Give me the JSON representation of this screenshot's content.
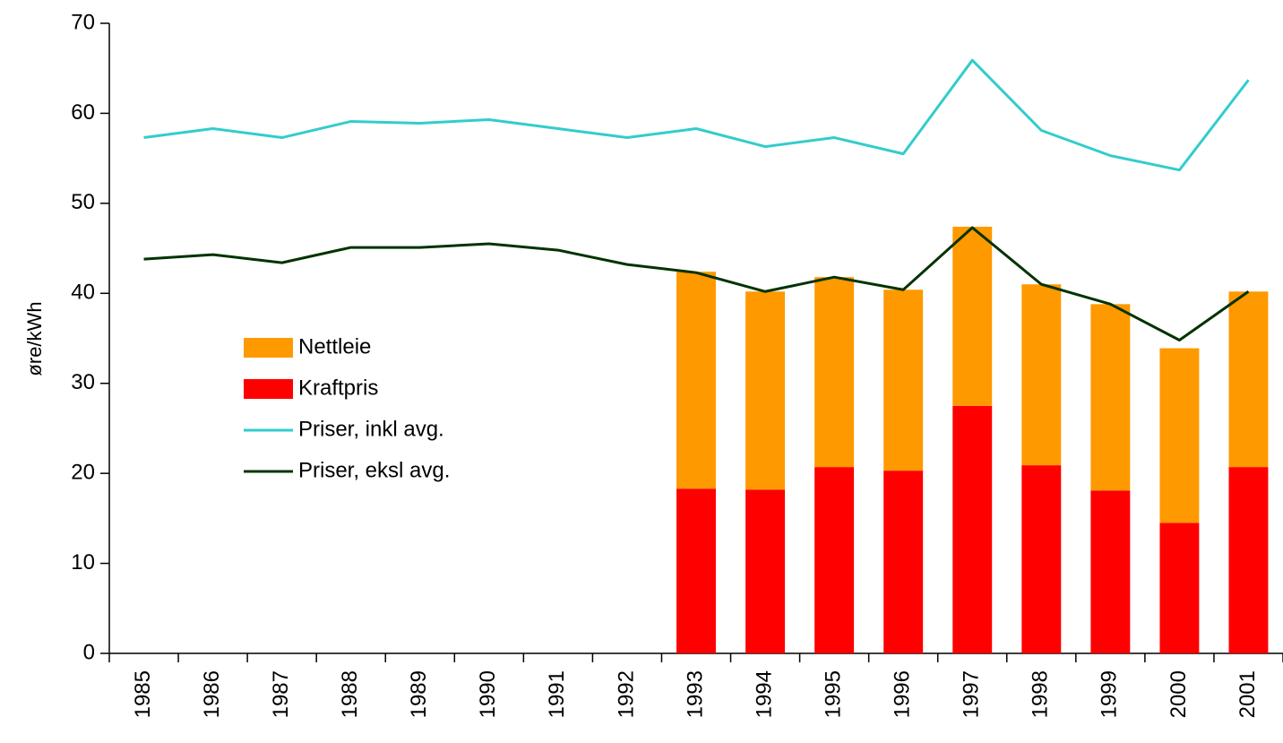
{
  "chart_data": {
    "type": "bar",
    "stacked": true,
    "y_label": "øre/kWh",
    "categories": [
      "1985",
      "1986",
      "1987",
      "1988",
      "1989",
      "1990",
      "1991",
      "1992",
      "1993",
      "1994",
      "1995",
      "1996",
      "1997",
      "1998",
      "1999",
      "2000",
      "2001"
    ],
    "series": [
      {
        "name": "Nettleie",
        "type": "bar",
        "color": "#ff9900",
        "values": [
          null,
          null,
          null,
          null,
          null,
          null,
          null,
          null,
          24.1,
          22.0,
          21.1,
          20.1,
          19.9,
          20.1,
          20.7,
          19.4,
          19.5
        ]
      },
      {
        "name": "Kraftpris",
        "type": "bar",
        "color": "#ff0000",
        "values": [
          null,
          null,
          null,
          null,
          null,
          null,
          null,
          null,
          18.3,
          18.2,
          20.7,
          20.3,
          27.5,
          20.9,
          18.1,
          14.5,
          20.7
        ]
      },
      {
        "name": "Priser, inkl avg.",
        "type": "line",
        "color": "#33cccc",
        "values": [
          57.3,
          58.3,
          57.3,
          59.1,
          58.9,
          59.3,
          58.3,
          57.3,
          58.3,
          56.3,
          57.3,
          55.5,
          65.9,
          58.1,
          55.3,
          53.7,
          63.7
        ]
      },
      {
        "name": "Priser, eksl avg.",
        "type": "line",
        "color": "#003300",
        "values": [
          43.8,
          44.3,
          43.4,
          45.1,
          45.1,
          45.5,
          44.8,
          43.2,
          42.3,
          40.2,
          41.8,
          40.4,
          47.3,
          41.0,
          38.8,
          34.8,
          40.2
        ]
      }
    ],
    "ylim": [
      0,
      70
    ],
    "yticks": [
      0,
      10,
      20,
      30,
      40,
      50,
      60,
      70
    ],
    "grid": false,
    "legend": "center-left"
  }
}
